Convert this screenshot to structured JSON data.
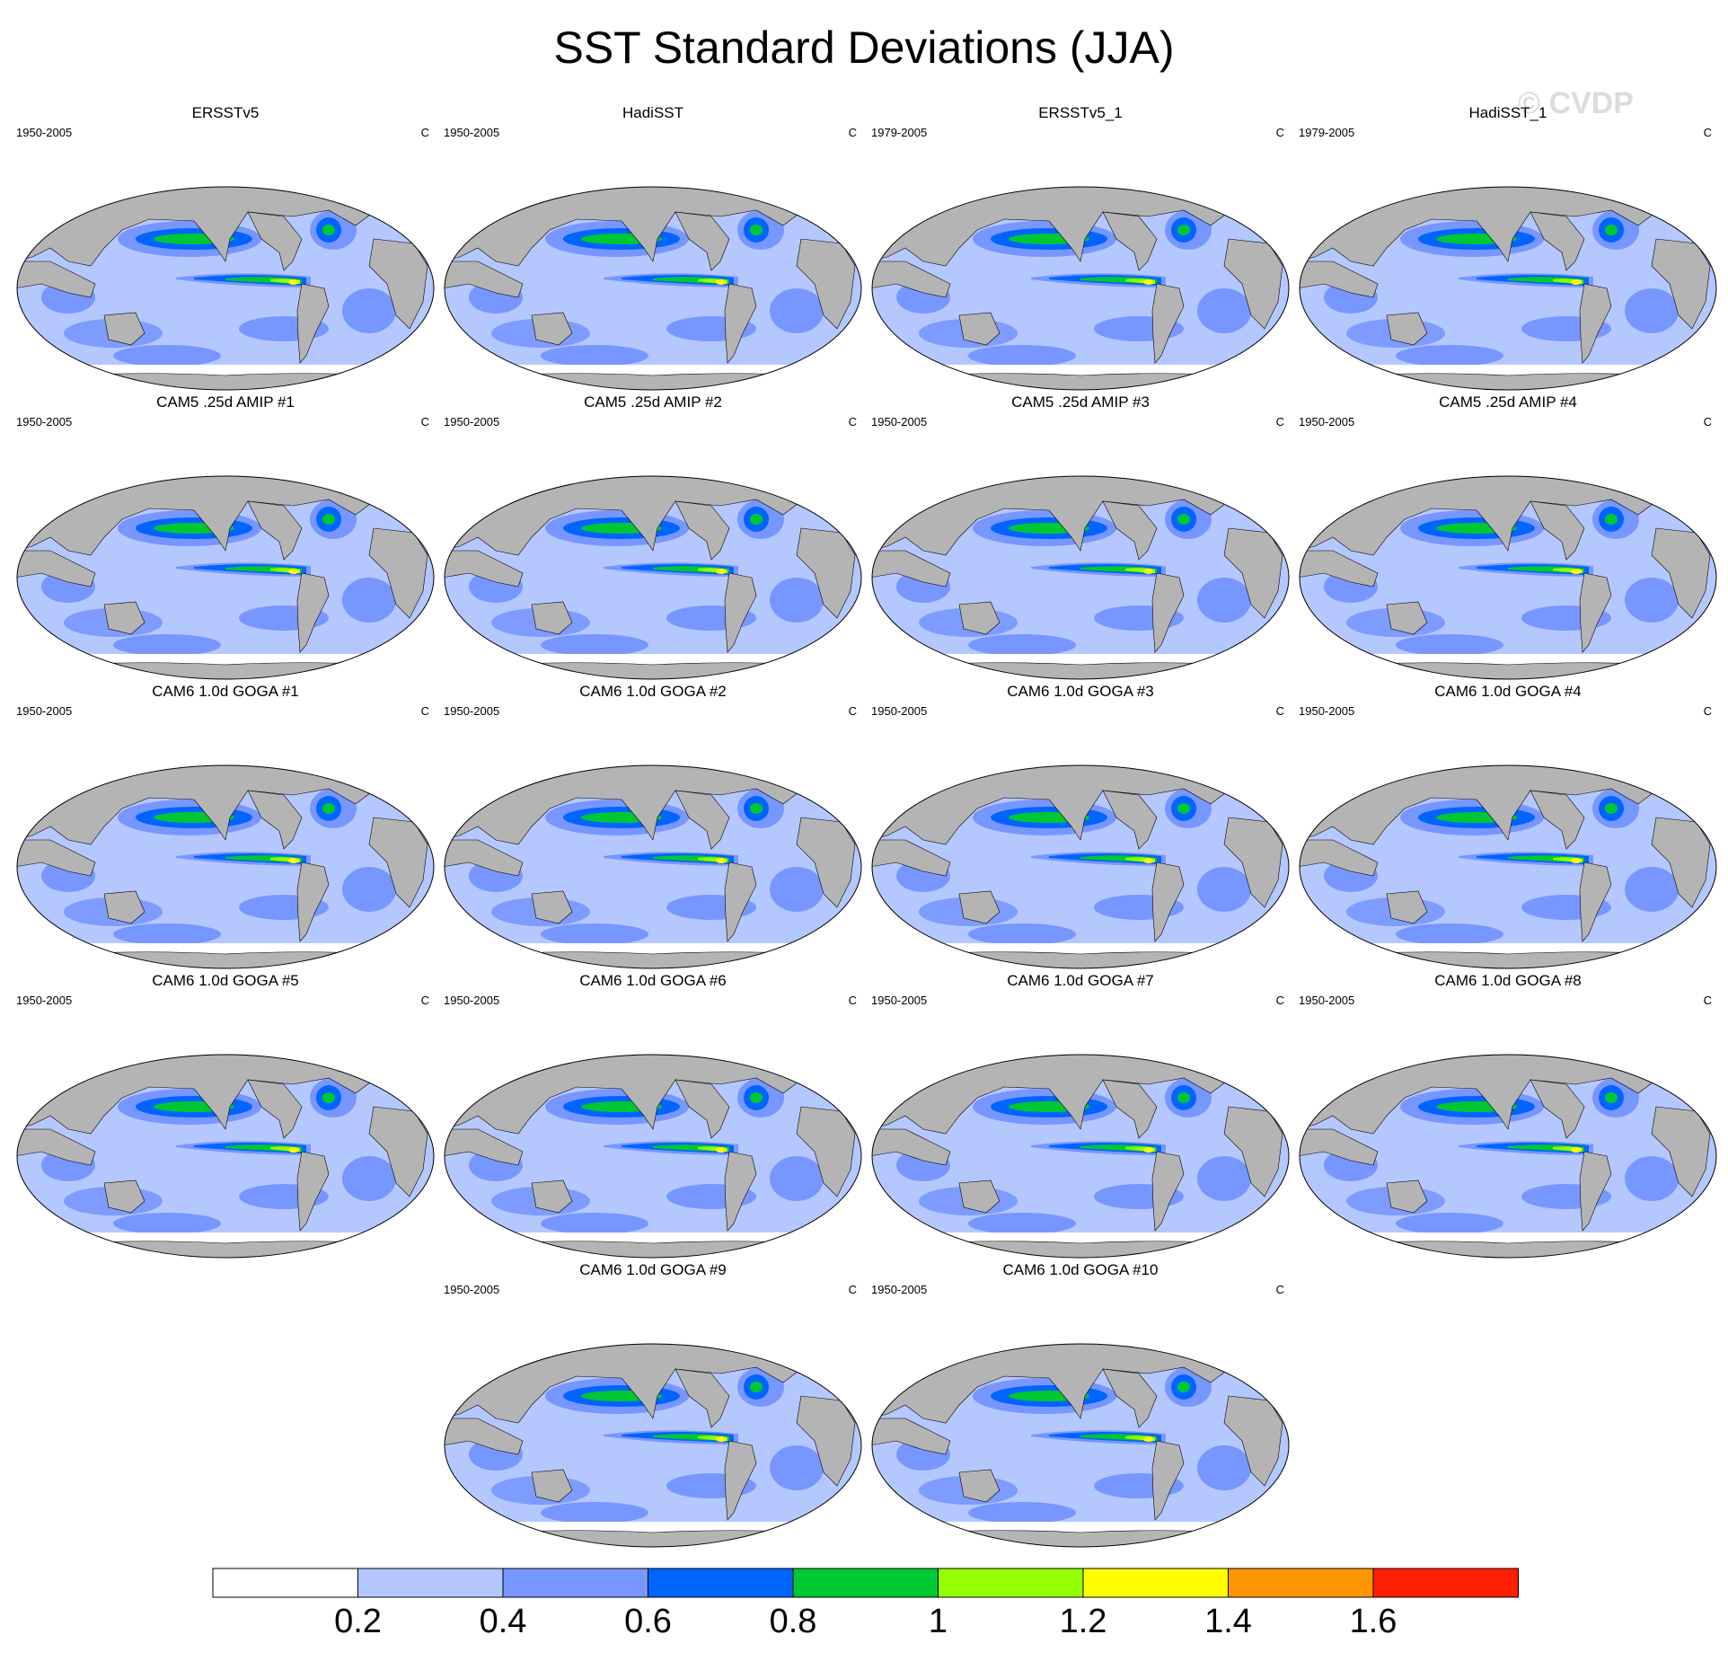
{
  "title": "SST Standard Deviations (JJA)",
  "watermark": "© CVDP",
  "units": "C",
  "panels": [
    {
      "name": "ERSSTv5",
      "period": "1950-2005"
    },
    {
      "name": "HadiSST",
      "period": "1950-2005"
    },
    {
      "name": "ERSSTv5_1",
      "period": "1979-2005"
    },
    {
      "name": "HadiSST_1",
      "period": "1979-2005"
    },
    {
      "name": "CAM5 .25d AMIP #1",
      "period": "1950-2005"
    },
    {
      "name": "CAM5 .25d AMIP #2",
      "period": "1950-2005"
    },
    {
      "name": "CAM5 .25d AMIP #3",
      "period": "1950-2005"
    },
    {
      "name": "CAM5 .25d AMIP #4",
      "period": "1950-2005"
    },
    {
      "name": "CAM6 1.0d GOGA #1",
      "period": "1950-2005"
    },
    {
      "name": "CAM6 1.0d GOGA #2",
      "period": "1950-2005"
    },
    {
      "name": "CAM6 1.0d GOGA #3",
      "period": "1950-2005"
    },
    {
      "name": "CAM6 1.0d GOGA #4",
      "period": "1950-2005"
    },
    {
      "name": "CAM6 1.0d GOGA #5",
      "period": "1950-2005"
    },
    {
      "name": "CAM6 1.0d GOGA #6",
      "period": "1950-2005"
    },
    {
      "name": "CAM6 1.0d GOGA #7",
      "period": "1950-2005"
    },
    {
      "name": "CAM6 1.0d GOGA #8",
      "period": "1950-2005"
    },
    {
      "name": "CAM6 1.0d GOGA #9",
      "period": "1950-2005"
    },
    {
      "name": "CAM6 1.0d GOGA #10",
      "period": "1950-2005"
    }
  ],
  "colorbar": {
    "colors": [
      "#ffffff",
      "#b4c8ff",
      "#7896ff",
      "#0064ff",
      "#00c832",
      "#96ff00",
      "#ffff00",
      "#ff9600",
      "#ff1e00"
    ],
    "labels": [
      "0.2",
      "0.4",
      "0.6",
      "0.8",
      "1",
      "1.2",
      "1.4",
      "1.6"
    ]
  },
  "colors": {
    "land": "#b4b4b4",
    "ocean_base": "#b4c8ff",
    "coast": "#000000"
  }
}
